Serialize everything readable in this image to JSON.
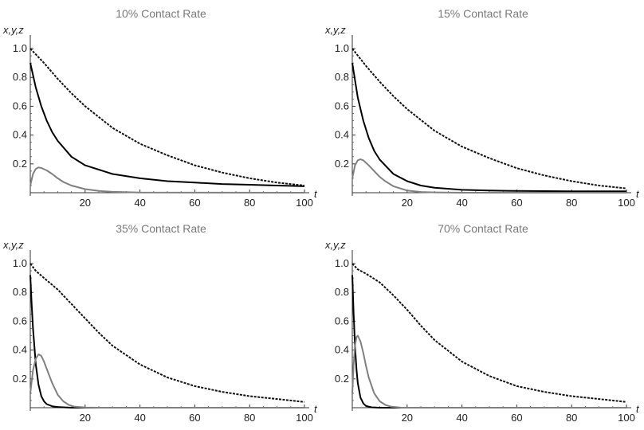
{
  "chart_data": [
    {
      "type": "line",
      "title": "10% Contact Rate",
      "xlabel": "t",
      "ylabel": "x,y,z",
      "xlim": [
        0,
        100
      ],
      "ylim": [
        0,
        1.05
      ],
      "xticks": [
        20,
        40,
        60,
        80,
        100
      ],
      "yticks": [
        0.2,
        0.4,
        0.6,
        0.8,
        1.0
      ],
      "grid": false,
      "series": [
        {
          "style": "dashed",
          "color": "#111111",
          "x": [
            0,
            5,
            10,
            15,
            20,
            30,
            40,
            50,
            60,
            70,
            80,
            90,
            100
          ],
          "y": [
            1.0,
            0.9,
            0.79,
            0.69,
            0.6,
            0.45,
            0.34,
            0.26,
            0.19,
            0.14,
            0.1,
            0.07,
            0.05
          ]
        },
        {
          "style": "solid",
          "color": "#000000",
          "x": [
            0,
            2,
            4,
            6,
            8,
            10,
            15,
            20,
            30,
            40,
            50,
            60,
            70,
            80,
            90,
            100
          ],
          "y": [
            0.9,
            0.73,
            0.6,
            0.5,
            0.42,
            0.36,
            0.25,
            0.19,
            0.13,
            0.1,
            0.08,
            0.07,
            0.06,
            0.055,
            0.05,
            0.045
          ]
        },
        {
          "style": "solid",
          "color": "#808080",
          "x": [
            0,
            1,
            2,
            3,
            4,
            6,
            8,
            10,
            12,
            15,
            20,
            25,
            30,
            40,
            100
          ],
          "y": [
            0.05,
            0.13,
            0.165,
            0.175,
            0.172,
            0.155,
            0.13,
            0.1,
            0.075,
            0.05,
            0.025,
            0.012,
            0.006,
            0.001,
            0
          ]
        }
      ]
    },
    {
      "type": "line",
      "title": "15% Contact Rate",
      "xlabel": "t",
      "ylabel": "x,y,z",
      "xlim": [
        0,
        100
      ],
      "ylim": [
        0,
        1.05
      ],
      "xticks": [
        20,
        40,
        60,
        80,
        100
      ],
      "yticks": [
        0.2,
        0.4,
        0.6,
        0.8,
        1.0
      ],
      "grid": false,
      "series": [
        {
          "style": "dashed",
          "color": "#111111",
          "x": [
            0,
            5,
            10,
            15,
            20,
            30,
            40,
            50,
            60,
            70,
            80,
            90,
            100
          ],
          "y": [
            1.0,
            0.88,
            0.77,
            0.67,
            0.58,
            0.43,
            0.32,
            0.24,
            0.17,
            0.12,
            0.08,
            0.05,
            0.03
          ]
        },
        {
          "style": "solid",
          "color": "#000000",
          "x": [
            0,
            2,
            4,
            6,
            8,
            10,
            15,
            20,
            25,
            30,
            40,
            50,
            60,
            80,
            100
          ],
          "y": [
            0.9,
            0.66,
            0.5,
            0.38,
            0.29,
            0.23,
            0.13,
            0.08,
            0.05,
            0.035,
            0.02,
            0.015,
            0.012,
            0.01,
            0.01
          ]
        },
        {
          "style": "solid",
          "color": "#808080",
          "x": [
            0,
            1,
            2,
            3,
            4,
            6,
            8,
            10,
            12,
            15,
            20,
            25,
            30,
            40,
            100
          ],
          "y": [
            0.1,
            0.19,
            0.225,
            0.232,
            0.225,
            0.19,
            0.15,
            0.11,
            0.08,
            0.045,
            0.015,
            0.005,
            0.002,
            0,
            0
          ]
        }
      ]
    },
    {
      "type": "line",
      "title": "35% Contact Rate",
      "xlabel": "t",
      "ylabel": "x,y,z",
      "xlim": [
        0,
        100
      ],
      "ylim": [
        0,
        1.05
      ],
      "xticks": [
        20,
        40,
        60,
        80,
        100
      ],
      "yticks": [
        0.2,
        0.4,
        0.6,
        0.8,
        1.0
      ],
      "grid": false,
      "series": [
        {
          "style": "dashed",
          "color": "#111111",
          "x": [
            0,
            2,
            5,
            10,
            15,
            20,
            25,
            30,
            40,
            50,
            60,
            70,
            80,
            90,
            100
          ],
          "y": [
            1.0,
            0.95,
            0.9,
            0.82,
            0.72,
            0.62,
            0.52,
            0.43,
            0.3,
            0.21,
            0.15,
            0.11,
            0.08,
            0.06,
            0.04
          ]
        },
        {
          "style": "solid",
          "color": "#000000",
          "x": [
            0,
            0.5,
            1,
            2,
            3,
            4,
            5,
            6,
            8,
            10,
            15,
            20,
            100
          ],
          "y": [
            0.92,
            0.72,
            0.55,
            0.3,
            0.16,
            0.08,
            0.045,
            0.025,
            0.01,
            0.005,
            0,
            0,
            0
          ]
        },
        {
          "style": "solid",
          "color": "#808080",
          "x": [
            0,
            1,
            2,
            3,
            4,
            5,
            6,
            8,
            10,
            12,
            14,
            16,
            20,
            25,
            100
          ],
          "y": [
            0.1,
            0.26,
            0.34,
            0.37,
            0.36,
            0.32,
            0.27,
            0.17,
            0.09,
            0.045,
            0.02,
            0.008,
            0.001,
            0,
            0
          ]
        }
      ]
    },
    {
      "type": "line",
      "title": "70% Contact Rate",
      "xlabel": "t",
      "ylabel": "x,y,z",
      "xlim": [
        0,
        100
      ],
      "ylim": [
        0,
        1.05
      ],
      "xticks": [
        20,
        40,
        60,
        80,
        100
      ],
      "yticks": [
        0.2,
        0.4,
        0.6,
        0.8,
        1.0
      ],
      "grid": false,
      "series": [
        {
          "style": "dashed",
          "color": "#111111",
          "x": [
            0,
            2,
            5,
            10,
            15,
            20,
            25,
            30,
            40,
            50,
            60,
            70,
            80,
            90,
            100
          ],
          "y": [
            1.0,
            0.96,
            0.93,
            0.87,
            0.78,
            0.68,
            0.57,
            0.47,
            0.32,
            0.22,
            0.15,
            0.11,
            0.08,
            0.06,
            0.04
          ]
        },
        {
          "style": "solid",
          "color": "#000000",
          "x": [
            0,
            0.5,
            1,
            1.5,
            2,
            3,
            4,
            5,
            7,
            10,
            100
          ],
          "y": [
            0.92,
            0.65,
            0.43,
            0.27,
            0.17,
            0.07,
            0.03,
            0.012,
            0.003,
            0,
            0
          ]
        },
        {
          "style": "solid",
          "color": "#808080",
          "x": [
            0,
            0.5,
            1,
            1.5,
            2,
            3,
            4,
            5,
            6,
            8,
            10,
            12,
            14,
            18,
            100
          ],
          "y": [
            0.1,
            0.3,
            0.43,
            0.49,
            0.5,
            0.46,
            0.38,
            0.29,
            0.21,
            0.1,
            0.045,
            0.02,
            0.008,
            0,
            0
          ]
        }
      ]
    }
  ]
}
